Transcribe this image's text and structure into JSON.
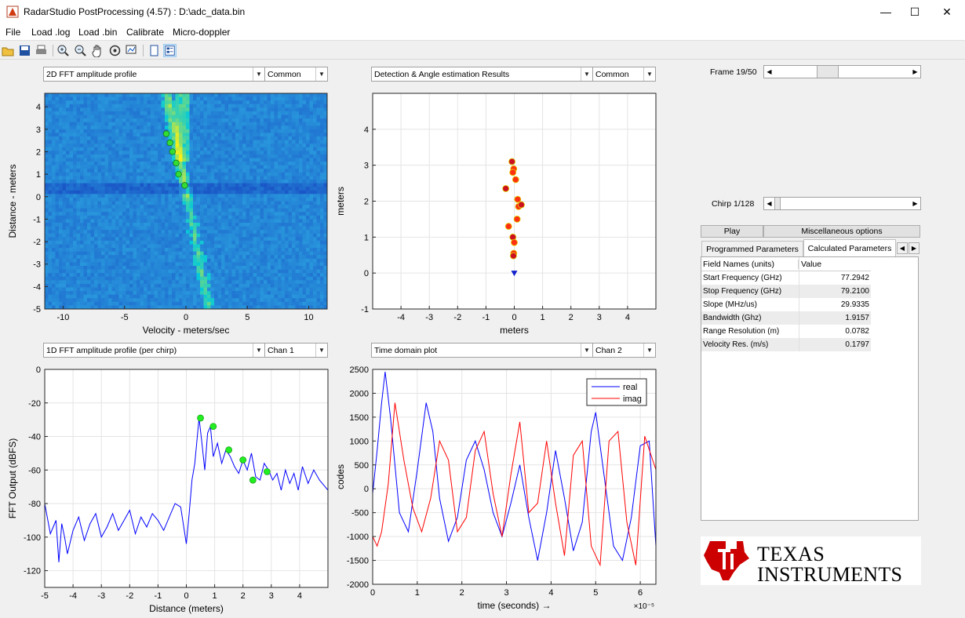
{
  "window": {
    "title": "RadarStudio PostProcessing (4.57)  : D:\\adc_data.bin",
    "minimize": "—",
    "maximize": "☐",
    "close": "✕"
  },
  "menu": [
    "File",
    "Load .log",
    "Load .bin",
    "Calibrate",
    "Micro-doppler"
  ],
  "toolbar_icons": [
    "open-icon",
    "save-icon",
    "print-icon",
    "zoom-in-icon",
    "zoom-out-icon",
    "pan-icon",
    "rotate-icon",
    "data-cursor-icon",
    "toggle-panel-icon",
    "layout-icon"
  ],
  "panels": {
    "p1": {
      "select": "2D FFT amplitude profile",
      "option": "Common"
    },
    "p2": {
      "select": "Detection & Angle estimation Results",
      "option": "Common"
    },
    "p3": {
      "select": "1D FFT amplitude profile (per chirp)",
      "option": "Chan 1"
    },
    "p4": {
      "select": "Time domain plot",
      "option": "Chan 2"
    }
  },
  "frame": {
    "label": "Frame 19/50",
    "value": 19,
    "max": 50
  },
  "chirp": {
    "label": "Chirp 1/128",
    "value": 1,
    "max": 128
  },
  "buttons": {
    "play": "Play",
    "misc": "Miscellaneous options"
  },
  "tabs": [
    "Programmed Parameters",
    "Calculated Parameters"
  ],
  "table": {
    "headers": [
      "Field Names   (units)",
      "Value"
    ],
    "rows": [
      [
        "Start Frequency (GHz)",
        "77.2942"
      ],
      [
        "Stop Frequency (GHz)",
        "79.2100"
      ],
      [
        "Slope (MHz/us)",
        "29.9335"
      ],
      [
        "Bandwidth (Ghz)",
        "1.9157"
      ],
      [
        "Range Resolution (m)",
        "0.0782"
      ],
      [
        "Velocity Res. (m/s)",
        "0.1797"
      ]
    ]
  },
  "logo": {
    "line1": "TEXAS",
    "line2": "INSTRUMENTS"
  },
  "chart_data": [
    {
      "type": "heatmap",
      "xlabel": "Velocity - meters/sec",
      "ylabel": "Distance - meters",
      "xticks": [
        -10,
        -5,
        0,
        5,
        10
      ],
      "yticks": [
        4,
        3,
        2,
        1,
        0,
        -1,
        -2,
        -3,
        -4,
        -5
      ],
      "xlim": [
        -11.5,
        11.5
      ],
      "ylim": [
        -5,
        4.6
      ],
      "series": [
        {
          "name": "detections",
          "x": [
            -1.6,
            -1.3,
            -1.1,
            -0.8,
            -0.6,
            -0.1
          ],
          "y": [
            2.8,
            2.4,
            2.0,
            1.5,
            1.0,
            0.5
          ]
        }
      ]
    },
    {
      "type": "scatter",
      "xlabel": "meters",
      "ylabel": "meters",
      "xticks": [
        -4,
        -3,
        -2,
        -1,
        0,
        1,
        2,
        3,
        4
      ],
      "yticks": [
        -1,
        0,
        1,
        2,
        3,
        4
      ],
      "xlim": [
        -5,
        5
      ],
      "ylim": [
        -1,
        5
      ],
      "series": [
        {
          "name": "objects",
          "x": [
            -0.08,
            -0.02,
            -0.05,
            -0.3,
            0.05,
            0.15,
            0.25,
            0.1,
            -0.2,
            -0.05,
            0.0,
            -0.02,
            -0.03,
            0.12
          ],
          "y": [
            3.1,
            2.9,
            2.8,
            2.35,
            2.6,
            1.85,
            1.9,
            1.5,
            1.3,
            1.0,
            0.85,
            0.55,
            0.48,
            2.05
          ]
        },
        {
          "name": "radar",
          "x": [
            0
          ],
          "y": [
            0
          ]
        }
      ]
    },
    {
      "type": "line",
      "xlabel": "Distance (meters)",
      "ylabel": "FFT Output (dBFS)",
      "xticks": [
        -5,
        -4,
        -3,
        -2,
        -1,
        0,
        1,
        2,
        3,
        4
      ],
      "yticks": [
        0,
        -20,
        -40,
        -60,
        -80,
        -100,
        -120
      ],
      "xlim": [
        -5,
        5
      ],
      "ylim": [
        -130,
        0
      ],
      "series": [
        {
          "name": "spectrum",
          "x": [
            -5,
            -4.8,
            -4.6,
            -4.5,
            -4.4,
            -4.3,
            -4.2,
            -4.0,
            -3.8,
            -3.6,
            -3.4,
            -3.2,
            -3.0,
            -2.8,
            -2.6,
            -2.4,
            -2.2,
            -2.0,
            -1.8,
            -1.6,
            -1.4,
            -1.2,
            -1.0,
            -0.8,
            -0.6,
            -0.4,
            -0.2,
            0.0,
            0.1,
            0.2,
            0.3,
            0.45,
            0.55,
            0.65,
            0.75,
            0.85,
            0.95,
            1.1,
            1.25,
            1.4,
            1.55,
            1.7,
            1.85,
            2.0,
            2.15,
            2.3,
            2.45,
            2.6,
            2.75,
            2.9,
            3.05,
            3.2,
            3.35,
            3.5,
            3.65,
            3.8,
            3.95,
            4.1,
            4.3,
            4.5,
            4.7,
            4.9,
            5.0
          ],
          "y": [
            -80,
            -98,
            -90,
            -115,
            -92,
            -100,
            -110,
            -96,
            -88,
            -102,
            -92,
            -86,
            -100,
            -94,
            -86,
            -96,
            -90,
            -84,
            -98,
            -88,
            -94,
            -86,
            -90,
            -96,
            -88,
            -80,
            -82,
            -104,
            -86,
            -66,
            -56,
            -29,
            -44,
            -60,
            -38,
            -34,
            -52,
            -44,
            -56,
            -48,
            -52,
            -58,
            -62,
            -54,
            -60,
            -50,
            -64,
            -66,
            -56,
            -60,
            -66,
            -62,
            -72,
            -60,
            -68,
            -62,
            -72,
            -58,
            -68,
            -60,
            -66,
            -70,
            -72
          ]
        },
        {
          "name": "peaks",
          "x": [
            0.5,
            0.95,
            1.5,
            2.0,
            2.35,
            2.85
          ],
          "y": [
            -29,
            -34,
            -48,
            -54,
            -66,
            -61
          ]
        }
      ]
    },
    {
      "type": "line",
      "xlabel": "time  (seconds) →",
      "ylabel": "codes",
      "exponent": "×10⁻⁵",
      "xticks": [
        0,
        1,
        2,
        3,
        4,
        5,
        6
      ],
      "yticks": [
        2500,
        2000,
        1500,
        1000,
        500,
        0,
        -500,
        -1000,
        -1500,
        -2000
      ],
      "xlim": [
        0,
        6.35
      ],
      "ylim": [
        -2000,
        2500
      ],
      "legend": "top-right",
      "series": [
        {
          "name": "real",
          "color": "#0000ff",
          "x": [
            0,
            0.1,
            0.2,
            0.28,
            0.4,
            0.6,
            0.8,
            1.0,
            1.2,
            1.35,
            1.5,
            1.7,
            1.9,
            2.1,
            2.3,
            2.5,
            2.7,
            2.9,
            3.1,
            3.3,
            3.5,
            3.7,
            3.9,
            4.1,
            4.3,
            4.5,
            4.7,
            4.9,
            5.0,
            5.2,
            5.4,
            5.6,
            5.8,
            6.0,
            6.2,
            6.35
          ],
          "y": [
            -100,
            800,
            1800,
            2450,
            1500,
            -500,
            -900,
            400,
            1800,
            1200,
            -200,
            -1100,
            -600,
            600,
            1000,
            400,
            -500,
            -1000,
            -300,
            500,
            -600,
            -1500,
            -500,
            800,
            -200,
            -1300,
            -700,
            1200,
            1600,
            200,
            -1200,
            -1500,
            -600,
            900,
            1000,
            -1200
          ]
        },
        {
          "name": "imag",
          "color": "#ff0000",
          "x": [
            0,
            0.1,
            0.2,
            0.35,
            0.5,
            0.7,
            0.9,
            1.1,
            1.3,
            1.5,
            1.7,
            1.9,
            2.1,
            2.3,
            2.5,
            2.7,
            2.9,
            3.1,
            3.3,
            3.5,
            3.7,
            3.9,
            4.1,
            4.3,
            4.5,
            4.7,
            4.9,
            5.1,
            5.3,
            5.5,
            5.7,
            5.9,
            6.1,
            6.35
          ],
          "y": [
            -1000,
            -1200,
            -900,
            100,
            1800,
            600,
            -400,
            -900,
            -200,
            1000,
            600,
            -900,
            -600,
            800,
            1200,
            -100,
            -1000,
            300,
            1400,
            -500,
            -300,
            1000,
            -300,
            -1400,
            700,
            1000,
            -1200,
            -1600,
            1000,
            1200,
            -700,
            -1600,
            1100,
            400
          ]
        }
      ]
    }
  ]
}
